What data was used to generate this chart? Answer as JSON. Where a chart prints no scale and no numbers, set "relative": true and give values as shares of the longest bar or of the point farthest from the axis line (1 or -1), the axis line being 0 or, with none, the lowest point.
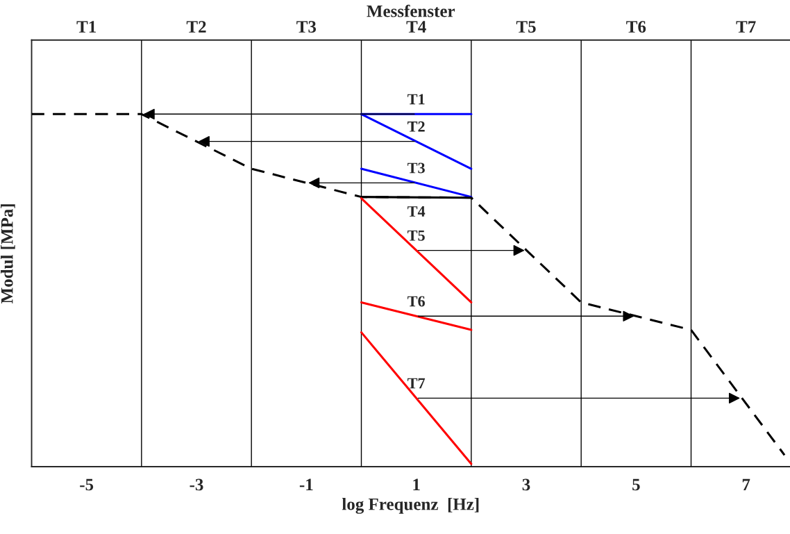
{
  "chart_data": {
    "type": "line",
    "relative": true,
    "xlabel": "log Frequenz  [Hz]",
    "ylabel": "Modul [MPa]",
    "x2label": "Messfenster",
    "xlim": [
      -6,
      7.8
    ],
    "xticks": [
      -5,
      -3,
      -1,
      1,
      3,
      5,
      7
    ],
    "annotations": [
      "T1",
      "T2",
      "T3",
      "T4",
      "T5",
      "T6",
      "T7"
    ],
    "ref_lines": [
      {
        "axis": "x",
        "value": -4,
        "color": "#000000"
      },
      {
        "axis": "x",
        "value": -2,
        "color": "#000000"
      },
      {
        "axis": "x",
        "value": 0,
        "color": "#000000"
      },
      {
        "axis": "x",
        "value": 2,
        "color": "#000000"
      },
      {
        "axis": "x",
        "value": 4,
        "color": "#000000"
      },
      {
        "axis": "x",
        "value": 6,
        "color": "#000000"
      }
    ],
    "series": [
      {
        "x": [
          -6,
          -4,
          -2,
          0,
          2,
          4,
          6,
          7.7
        ],
        "values": [
          1,
          1,
          0.845,
          0.765,
          0.763,
          0.466,
          0.388,
          0.033
        ],
        "color": "#000000",
        "line_style": "dashed"
      },
      {
        "name": "T1",
        "x": [
          0,
          2
        ],
        "values": [
          1,
          1
        ],
        "color": "#0000ff",
        "line_style": "solid"
      },
      {
        "name": "T2",
        "x": [
          0,
          2
        ],
        "values": [
          1,
          0.845
        ],
        "color": "#0000ff",
        "line_style": "solid"
      },
      {
        "name": "T3",
        "x": [
          0,
          2
        ],
        "values": [
          0.845,
          0.765
        ],
        "color": "#0000ff",
        "line_style": "solid"
      },
      {
        "name": "T4",
        "x": [
          0,
          2
        ],
        "values": [
          0.765,
          0.763
        ],
        "color": "#000000",
        "line_style": "solid"
      },
      {
        "name": "T5",
        "x": [
          0,
          2
        ],
        "values": [
          0.761,
          0.466
        ],
        "color": "#ff0000",
        "line_style": "solid"
      },
      {
        "name": "T6",
        "x": [
          0,
          2
        ],
        "values": [
          0.466,
          0.388
        ],
        "color": "#ff0000",
        "line_style": "solid"
      },
      {
        "name": "T7",
        "x": [
          0,
          2
        ],
        "values": [
          0.381,
          0.008
        ],
        "color": "#ff0000",
        "line_style": "solid"
      }
    ],
    "grid": false,
    "legend": false
  }
}
